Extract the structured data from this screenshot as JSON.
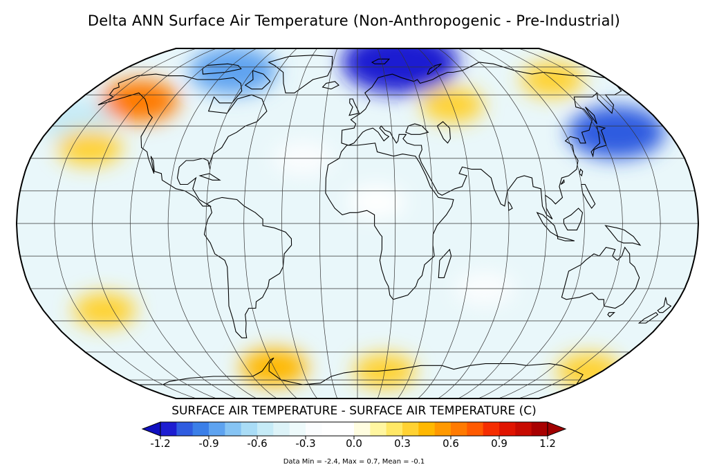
{
  "title": "Delta ANN Surface Air Temperature (Non-Anthropogenic - Pre-Industrial)",
  "colorbar": {
    "label": "SURFACE AIR TEMPERATURE - SURFACE AIR TEMPERATURE (C)",
    "ticks": [
      "-1.2",
      "-0.9",
      "-0.6",
      "-0.3",
      "0.0",
      "0.3",
      "0.6",
      "0.9",
      "1.2"
    ],
    "range": [
      -1.2,
      1.2
    ],
    "step": 0.1,
    "colors": [
      "#1d1dd1",
      "#2f5ce0",
      "#3b7fe8",
      "#5ea3f0",
      "#86c4f4",
      "#a9dcf6",
      "#c6ebf7",
      "#ddf3f8",
      "#eefafb",
      "#fbfdfe",
      "#ffffff",
      "#ffffff",
      "#fffde0",
      "#fff6a0",
      "#ffe866",
      "#ffd233",
      "#ffb800",
      "#ff9900",
      "#ff7a00",
      "#ff5a00",
      "#f52d00",
      "#e01400",
      "#c70a00",
      "#a80000"
    ],
    "under_color": "#1010c0",
    "over_color": "#a00000"
  },
  "stats": "Data Min = -2.4, Max = 0.7, Mean = -0.1",
  "map": {
    "projection": "Robinson",
    "graticule_lon_step": 20,
    "graticule_lat_step": 15,
    "anomalies": [
      {
        "lon": 35,
        "lat": 78,
        "value": -1.4
      },
      {
        "lon": -95,
        "lat": 73,
        "value": -0.8
      },
      {
        "lon": 150,
        "lat": 42,
        "value": -1.0
      },
      {
        "lon": -170,
        "lat": 48,
        "value": -0.6
      },
      {
        "lon": -140,
        "lat": 57,
        "value": 0.6
      },
      {
        "lon": -150,
        "lat": 35,
        "value": 0.35
      },
      {
        "lon": -60,
        "lat": -68,
        "value": 0.4
      },
      {
        "lon": 170,
        "lat": -70,
        "value": 0.35
      },
      {
        "lon": 20,
        "lat": -70,
        "value": 0.3
      },
      {
        "lon": -145,
        "lat": -40,
        "value": 0.3
      },
      {
        "lon": 140,
        "lat": 68,
        "value": 0.3
      },
      {
        "lon": 60,
        "lat": 55,
        "value": 0.3
      },
      {
        "lon": -30,
        "lat": 30,
        "value": -0.25
      },
      {
        "lon": 10,
        "lat": 10,
        "value": -0.2
      },
      {
        "lon": 70,
        "lat": -30,
        "value": -0.25
      }
    ]
  }
}
